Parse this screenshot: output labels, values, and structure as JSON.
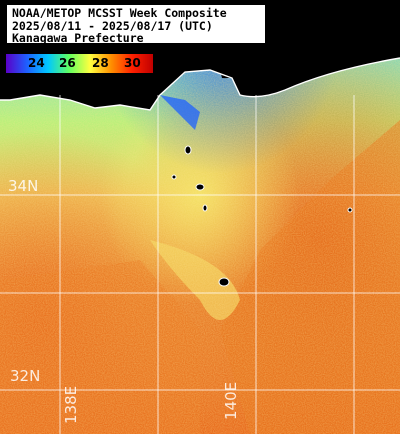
{
  "title": {
    "line1": "NOAA/METOP MCSST Week Composite",
    "line2": "2025/08/11 - 2025/08/17 (UTC)",
    "line3": "Kanagawa Prefecture"
  },
  "legend": {
    "ticks": [
      "24",
      "26",
      "28",
      "30"
    ],
    "colors": [
      "#5a00c8",
      "#1e60ff",
      "#00c8ff",
      "#60ff60",
      "#ffff40",
      "#ff9000",
      "#ff2000",
      "#c00000"
    ]
  },
  "grid": {
    "lat_labels": [
      "34N",
      "32N"
    ],
    "lon_labels": [
      "138E",
      "140E"
    ]
  },
  "colors": {
    "land": "#000000",
    "coast": "#ffffff",
    "sea_warm": "#e8701c",
    "sea_mid": "#f2b648",
    "sea_cool": "#9cee78"
  }
}
